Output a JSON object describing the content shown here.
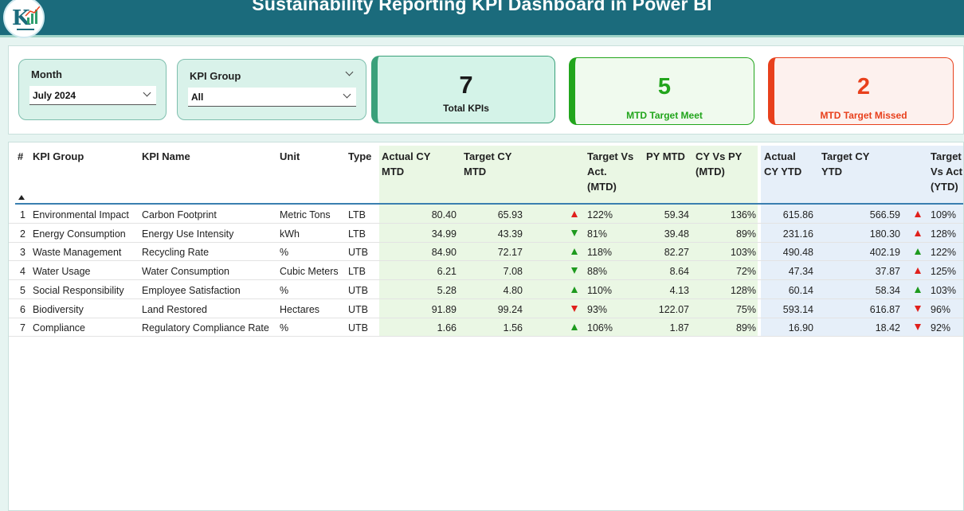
{
  "header": {
    "title": "Sustainability Reporting KPI Dashboard in Power BI",
    "logo_icon": "kpi-logo-icon"
  },
  "slicers": {
    "month": {
      "label": "Month",
      "value": "July 2024"
    },
    "kpi_group": {
      "label": "KPI Group",
      "value": "All"
    }
  },
  "cards": {
    "total": {
      "value": "7",
      "label": "Total KPIs",
      "color": "#1a1a1a",
      "accent": "#3aa07a",
      "bg": "#d4f3e8"
    },
    "met": {
      "value": "5",
      "label": "MTD Target Meet",
      "color": "#22a51c",
      "accent": "#22a51c",
      "bg": "#f0faee"
    },
    "missed": {
      "value": "2",
      "label": "MTD Target Missed",
      "color": "#e8401c",
      "accent": "#e8401c",
      "bg": "#fdf1ee"
    }
  },
  "table": {
    "headers": {
      "num": "#",
      "group": "KPI Group",
      "name": "KPI Name",
      "unit": "Unit",
      "type": "Type",
      "actual_mtd_1": "Actual CY",
      "actual_mtd_2": "MTD",
      "target_mtd_1": "Target CY",
      "target_mtd_2": "MTD",
      "tva_mtd_1": "Target Vs",
      "tva_mtd_2": "Act.",
      "tva_mtd_3": "(MTD)",
      "py_mtd": "PY MTD",
      "cyvspy_1": "CY Vs PY",
      "cyvspy_2": "(MTD)",
      "actual_ytd_1": "Actual",
      "actual_ytd_2": "CY YTD",
      "target_ytd_1": "Target CY",
      "target_ytd_2": "YTD",
      "tva_ytd_1": "Target",
      "tva_ytd_2": "Vs Act",
      "tva_ytd_3": "(YTD)"
    },
    "status_colors": {
      "up_red": "#e0201c",
      "up_green": "#1e9a1e",
      "down_green": "#1e9a1e",
      "down_red": "#e0201c"
    },
    "rows": [
      {
        "num": "1",
        "group": "Environmental Impact",
        "name": "Carbon Footprint",
        "unit": "Metric Tons",
        "type": "LTB",
        "actual_mtd": "80.40",
        "target_mtd": "65.93",
        "tva_mtd": "122%",
        "tva_mtd_icon": "up",
        "tva_mtd_color": "#e0201c",
        "py_mtd": "59.34",
        "cyvspy": "136%",
        "actual_ytd": "615.86",
        "target_ytd": "566.59",
        "tva_ytd": "109%",
        "tva_ytd_icon": "up",
        "tva_ytd_color": "#e0201c"
      },
      {
        "num": "2",
        "group": "Energy Consumption",
        "name": "Energy Use Intensity",
        "unit": "kWh",
        "type": "LTB",
        "actual_mtd": "34.99",
        "target_mtd": "43.39",
        "tva_mtd": "81%",
        "tva_mtd_icon": "down",
        "tva_mtd_color": "#1e9a1e",
        "py_mtd": "39.48",
        "cyvspy": "89%",
        "actual_ytd": "231.16",
        "target_ytd": "180.30",
        "tva_ytd": "128%",
        "tva_ytd_icon": "up",
        "tva_ytd_color": "#e0201c"
      },
      {
        "num": "3",
        "group": "Waste Management",
        "name": "Recycling Rate",
        "unit": "%",
        "type": "UTB",
        "actual_mtd": "84.90",
        "target_mtd": "72.17",
        "tva_mtd": "118%",
        "tva_mtd_icon": "up",
        "tva_mtd_color": "#1e9a1e",
        "py_mtd": "82.27",
        "cyvspy": "103%",
        "actual_ytd": "490.48",
        "target_ytd": "402.19",
        "tva_ytd": "122%",
        "tva_ytd_icon": "up",
        "tva_ytd_color": "#1e9a1e"
      },
      {
        "num": "4",
        "group": "Water Usage",
        "name": "Water Consumption",
        "unit": "Cubic Meters",
        "type": "LTB",
        "actual_mtd": "6.21",
        "target_mtd": "7.08",
        "tva_mtd": "88%",
        "tva_mtd_icon": "down",
        "tva_mtd_color": "#1e9a1e",
        "py_mtd": "8.64",
        "cyvspy": "72%",
        "actual_ytd": "47.34",
        "target_ytd": "37.87",
        "tva_ytd": "125%",
        "tva_ytd_icon": "up",
        "tva_ytd_color": "#e0201c"
      },
      {
        "num": "5",
        "group": "Social Responsibility",
        "name": "Employee Satisfaction",
        "unit": "%",
        "type": "UTB",
        "actual_mtd": "5.28",
        "target_mtd": "4.80",
        "tva_mtd": "110%",
        "tva_mtd_icon": "up",
        "tva_mtd_color": "#1e9a1e",
        "py_mtd": "4.13",
        "cyvspy": "128%",
        "actual_ytd": "60.14",
        "target_ytd": "58.34",
        "tva_ytd": "103%",
        "tva_ytd_icon": "up",
        "tva_ytd_color": "#1e9a1e"
      },
      {
        "num": "6",
        "group": "Biodiversity",
        "name": "Land Restored",
        "unit": "Hectares",
        "type": "UTB",
        "actual_mtd": "91.89",
        "target_mtd": "99.24",
        "tva_mtd": "93%",
        "tva_mtd_icon": "down",
        "tva_mtd_color": "#e0201c",
        "py_mtd": "122.07",
        "cyvspy": "75%",
        "actual_ytd": "593.14",
        "target_ytd": "616.87",
        "tva_ytd": "96%",
        "tva_ytd_icon": "down",
        "tva_ytd_color": "#e0201c"
      },
      {
        "num": "7",
        "group": "Compliance",
        "name": "Regulatory Compliance Rate",
        "unit": "%",
        "type": "UTB",
        "actual_mtd": "1.66",
        "target_mtd": "1.56",
        "tva_mtd": "106%",
        "tva_mtd_icon": "up",
        "tva_mtd_color": "#1e9a1e",
        "py_mtd": "1.87",
        "cyvspy": "89%",
        "actual_ytd": "16.90",
        "target_ytd": "18.42",
        "tva_ytd": "92%",
        "tva_ytd_icon": "down",
        "tva_ytd_color": "#e0201c"
      }
    ]
  }
}
